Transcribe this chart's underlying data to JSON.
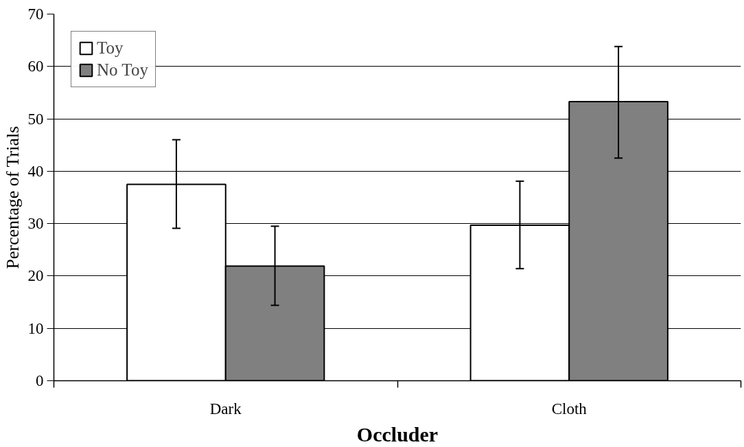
{
  "chart_data": {
    "type": "bar",
    "xlabel": "Occluder",
    "ylabel": "Percentage of Trials",
    "categories": [
      "Dark",
      "Cloth"
    ],
    "series": [
      {
        "name": "Toy",
        "color": "#ffffff",
        "values": [
          37.5,
          29.7
        ],
        "errors": [
          [
            29.1,
            46.0
          ],
          [
            21.4,
            38.1
          ]
        ]
      },
      {
        "name": "No Toy",
        "color": "#808080",
        "values": [
          21.9,
          53.3
        ],
        "errors": [
          [
            14.4,
            29.5
          ],
          [
            42.5,
            63.8
          ]
        ]
      }
    ],
    "ylim": [
      0,
      70
    ],
    "yticks": [
      0,
      10,
      20,
      30,
      40,
      50,
      60,
      70
    ],
    "grid": "y",
    "legend": "top left"
  }
}
